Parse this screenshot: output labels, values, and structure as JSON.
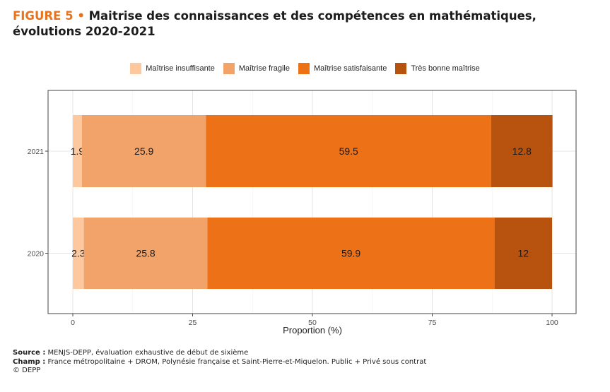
{
  "title": {
    "figure_label": "FIGURE 5",
    "bullet": "•",
    "text": "Maitrise des connaissances et des compétences en mathématiques, évolutions 2020-2021"
  },
  "footer": {
    "source_label": "Source :",
    "source_text": " MENJS-DEPP, évaluation exhaustive de début de sixième",
    "champ_label": "Champ :",
    "champ_text": " France métropolitaine + DROM, Polynésie française et Saint-Pierre-et-Miquelon. Public + Privé sous contrat",
    "copyright": "© DEPP"
  },
  "chart_data": {
    "type": "bar",
    "orientation": "horizontal",
    "stacked": true,
    "categories": [
      "2021",
      "2020"
    ],
    "series": [
      {
        "name": "Maîtrise insuffisante",
        "values": [
          1.9,
          2.3
        ],
        "color": "#fdc89e"
      },
      {
        "name": "Maîtrise fragile",
        "values": [
          25.9,
          25.8
        ],
        "color": "#f2a36a"
      },
      {
        "name": "Maîtrise satisfaisante",
        "values": [
          59.5,
          59.9
        ],
        "color": "#ec7117"
      },
      {
        "name": "Très bonne maîtrise",
        "values": [
          12.8,
          12
        ],
        "color": "#b8520f"
      }
    ],
    "data_labels": [
      [
        "1.9",
        "2.3"
      ],
      [
        "25.9",
        "25.8"
      ],
      [
        "59.5",
        "59.9"
      ],
      [
        "12.8",
        "12"
      ]
    ],
    "xlabel": "Proportion (%)",
    "xlim": [
      0,
      100
    ],
    "xticks": [
      0,
      25,
      50,
      75,
      100
    ],
    "grid": true,
    "legend_position": "top"
  }
}
